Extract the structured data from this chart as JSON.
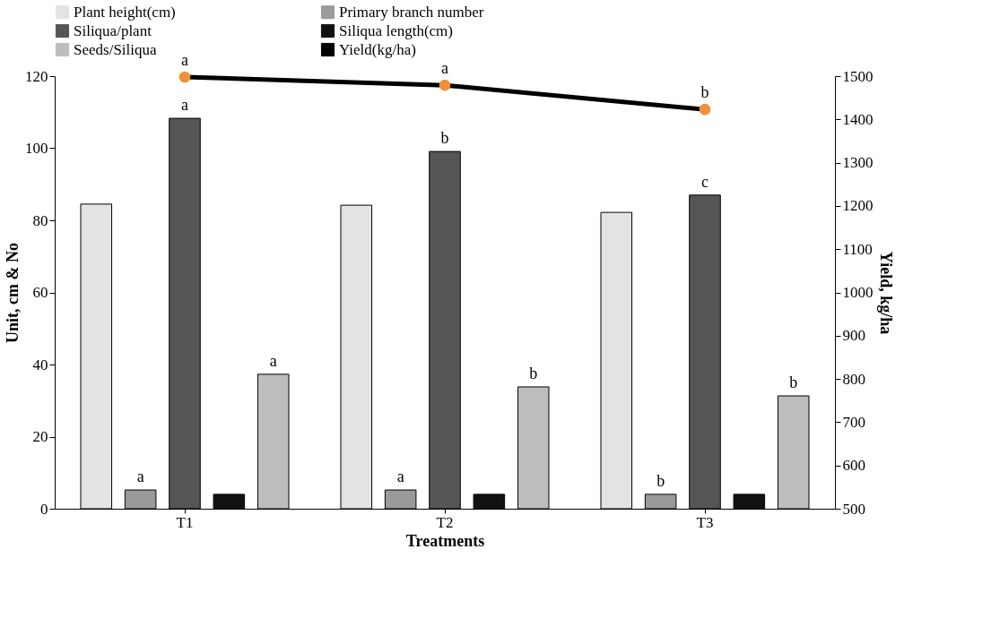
{
  "chart_data": {
    "type": "bar",
    "xlabel": "Treatments",
    "ylabel": "Unit, cm & No",
    "y2label": "Yield, kg/ha",
    "categories": [
      "T1",
      "T2",
      "T3"
    ],
    "series": [
      {
        "name": "Plant height(cm)",
        "color": "#e3e3e3",
        "values": [
          84.5,
          84.2,
          82.2
        ]
      },
      {
        "name": "Primary branch number",
        "color": "#9a9a9a",
        "values": [
          5.2,
          5.2,
          4
        ],
        "value_labels": [
          "a",
          "a",
          "b"
        ]
      },
      {
        "name": "Siliqua/plant",
        "color": "#555555",
        "values": [
          108.3,
          99.1,
          87
        ],
        "value_labels": [
          "a",
          "b",
          "c"
        ]
      },
      {
        "name": "Siliqua length(cm)",
        "color": "#111111",
        "values": [
          4,
          4,
          4
        ]
      },
      {
        "name": "Seeds/Siliqua",
        "color": "#bdbdbd",
        "values": [
          37.3,
          33.8,
          31.3
        ],
        "value_labels": [
          "a",
          "b",
          "b"
        ]
      },
      {
        "name": "Yield(kg/ha)",
        "type": "line",
        "axis": "y2",
        "color": "#000000",
        "colors": [
          "#f0913a",
          "#f0913a",
          "#f0913a"
        ],
        "values": [
          1498,
          1479,
          1423
        ],
        "value_labels": [
          "a",
          "a",
          "b"
        ]
      }
    ],
    "ylim": [
      0,
      120
    ],
    "yticks": [
      0,
      20,
      40,
      60,
      80,
      100,
      120
    ],
    "y2lim": [
      500,
      1500
    ],
    "y2ticks": [
      500,
      600,
      700,
      800,
      900,
      1000,
      1100,
      1200,
      1300,
      1400,
      1500
    ],
    "grid": false,
    "legend": "top",
    "marker": "circle"
  }
}
